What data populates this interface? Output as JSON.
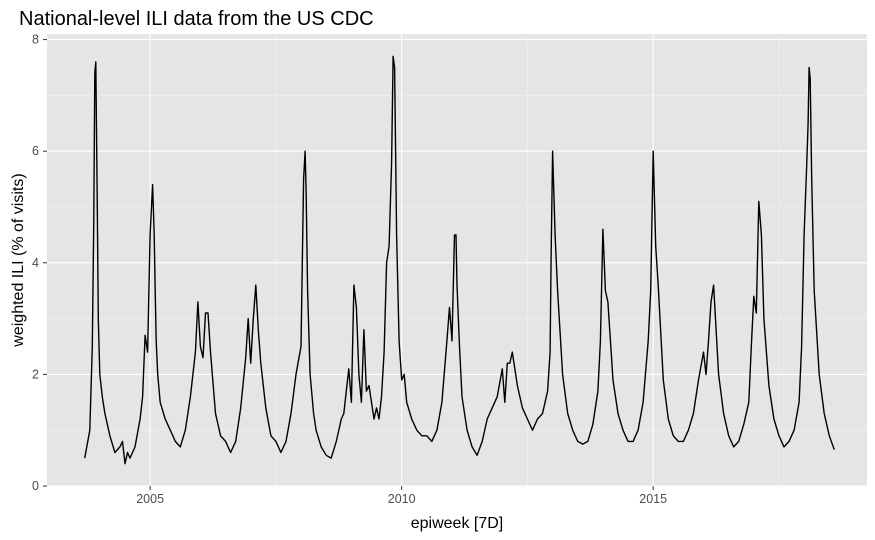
{
  "chart_data": {
    "type": "line",
    "title": "National-level ILI data from the US CDC",
    "xlabel": "epiweek [7D]",
    "ylabel": "weighted ILI (% of visits)",
    "x_ticks": [
      "2005",
      "2010",
      "2015"
    ],
    "y_ticks": [
      "0",
      "2",
      "4",
      "6",
      "8"
    ],
    "xlim": [
      2002.95,
      2019.25
    ],
    "ylim": [
      0,
      8.1
    ],
    "grid": true,
    "background": "#e5e5e5",
    "line_color": "#000000",
    "series": [
      {
        "x": [
          2003.7,
          2003.8,
          2003.85,
          2003.88,
          2003.9,
          2003.92,
          2003.95,
          2003.97,
          2004.0,
          2004.05,
          2004.1,
          2004.2,
          2004.3,
          2004.4,
          2004.45,
          2004.5,
          2004.55,
          2004.6,
          2004.7,
          2004.8,
          2004.85,
          2004.9,
          2004.95,
          2005.0,
          2005.05,
          2005.08,
          2005.1,
          2005.12,
          2005.15,
          2005.2,
          2005.3,
          2005.4,
          2005.5,
          2005.6,
          2005.7,
          2005.8,
          2005.9,
          2005.95,
          2006.0,
          2006.05,
          2006.1,
          2006.15,
          2006.2,
          2006.3,
          2006.4,
          2006.5,
          2006.6,
          2006.7,
          2006.8,
          2006.9,
          2006.95,
          2007.0,
          2007.05,
          2007.1,
          2007.15,
          2007.2,
          2007.3,
          2007.4,
          2007.5,
          2007.6,
          2007.7,
          2007.8,
          2007.9,
          2008.0,
          2008.05,
          2008.08,
          2008.1,
          2008.13,
          2008.18,
          2008.25,
          2008.3,
          2008.4,
          2008.5,
          2008.6,
          2008.7,
          2008.8,
          2008.85,
          2008.9,
          2008.95,
          2009.0,
          2009.05,
          2009.1,
          2009.15,
          2009.2,
          2009.25,
          2009.3,
          2009.35,
          2009.4,
          2009.45,
          2009.5,
          2009.55,
          2009.6,
          2009.65,
          2009.7,
          2009.75,
          2009.8,
          2009.83,
          2009.86,
          2009.9,
          2009.95,
          2010.0,
          2010.05,
          2010.1,
          2010.2,
          2010.3,
          2010.4,
          2010.5,
          2010.6,
          2010.7,
          2010.8,
          2010.9,
          2010.95,
          2011.0,
          2011.05,
          2011.08,
          2011.1,
          2011.15,
          2011.2,
          2011.3,
          2011.4,
          2011.5,
          2011.6,
          2011.7,
          2011.8,
          2011.9,
          2012.0,
          2012.05,
          2012.1,
          2012.15,
          2012.2,
          2012.3,
          2012.4,
          2012.5,
          2012.6,
          2012.7,
          2012.8,
          2012.9,
          2012.95,
          2012.97,
          2013.0,
          2013.05,
          2013.1,
          2013.2,
          2013.3,
          2013.4,
          2013.5,
          2013.6,
          2013.7,
          2013.8,
          2013.9,
          2013.95,
          2014.0,
          2014.05,
          2014.1,
          2014.2,
          2014.3,
          2014.4,
          2014.5,
          2014.6,
          2014.7,
          2014.8,
          2014.9,
          2014.95,
          2015.0,
          2015.05,
          2015.1,
          2015.2,
          2015.3,
          2015.4,
          2015.5,
          2015.6,
          2015.7,
          2015.8,
          2015.9,
          2016.0,
          2016.05,
          2016.1,
          2016.15,
          2016.2,
          2016.25,
          2016.3,
          2016.4,
          2016.5,
          2016.6,
          2016.7,
          2016.8,
          2016.9,
          2016.95,
          2017.0,
          2017.05,
          2017.1,
          2017.15,
          2017.2,
          2017.3,
          2017.4,
          2017.5,
          2017.6,
          2017.7,
          2017.8,
          2017.9,
          2017.95,
          2018.0,
          2018.05,
          2018.08,
          2018.1,
          2018.12,
          2018.15,
          2018.2,
          2018.3,
          2018.4,
          2018.5,
          2018.6
        ],
        "y": [
          0.5,
          1.0,
          2.5,
          4.8,
          7.4,
          7.6,
          5.0,
          3.0,
          2.0,
          1.6,
          1.3,
          0.9,
          0.6,
          0.7,
          0.8,
          0.4,
          0.6,
          0.5,
          0.7,
          1.2,
          1.6,
          2.7,
          2.4,
          4.5,
          5.4,
          4.5,
          3.5,
          2.6,
          2.0,
          1.5,
          1.2,
          1.0,
          0.8,
          0.7,
          1.0,
          1.6,
          2.4,
          3.3,
          2.5,
          2.3,
          3.1,
          3.1,
          2.4,
          1.3,
          0.9,
          0.8,
          0.6,
          0.8,
          1.4,
          2.3,
          3.0,
          2.2,
          3.0,
          3.6,
          2.8,
          2.2,
          1.4,
          0.9,
          0.8,
          0.6,
          0.8,
          1.3,
          2.0,
          2.5,
          5.5,
          6.0,
          5.3,
          3.5,
          2.0,
          1.3,
          1.0,
          0.7,
          0.55,
          0.5,
          0.8,
          1.2,
          1.3,
          1.7,
          2.1,
          1.5,
          3.6,
          3.2,
          2.0,
          1.5,
          2.8,
          1.7,
          1.8,
          1.5,
          1.2,
          1.4,
          1.2,
          1.6,
          2.4,
          4.0,
          4.3,
          5.8,
          7.7,
          7.5,
          4.5,
          2.6,
          1.9,
          2.0,
          1.5,
          1.2,
          1.0,
          0.9,
          0.9,
          0.8,
          1.0,
          1.5,
          2.6,
          3.2,
          2.6,
          4.5,
          4.5,
          3.6,
          2.5,
          1.6,
          1.0,
          0.7,
          0.55,
          0.8,
          1.2,
          1.4,
          1.6,
          2.1,
          1.5,
          2.2,
          2.2,
          2.4,
          1.8,
          1.4,
          1.2,
          1.0,
          1.2,
          1.3,
          1.7,
          2.4,
          4.1,
          6.0,
          4.5,
          3.5,
          2.0,
          1.3,
          1.0,
          0.8,
          0.75,
          0.8,
          1.1,
          1.7,
          2.6,
          4.6,
          3.5,
          3.3,
          1.9,
          1.3,
          1.0,
          0.8,
          0.8,
          1.0,
          1.5,
          2.6,
          3.5,
          6.0,
          4.3,
          3.6,
          1.9,
          1.2,
          0.9,
          0.8,
          0.8,
          1.0,
          1.3,
          1.9,
          2.4,
          2.0,
          2.6,
          3.3,
          3.6,
          2.8,
          2.0,
          1.3,
          0.9,
          0.7,
          0.8,
          1.1,
          1.5,
          2.5,
          3.4,
          3.1,
          5.1,
          4.5,
          3.0,
          1.8,
          1.2,
          0.9,
          0.7,
          0.8,
          1.0,
          1.5,
          2.5,
          4.5,
          5.7,
          6.5,
          7.5,
          7.3,
          5.5,
          3.5,
          2.0,
          1.3,
          0.9,
          0.65
        ]
      }
    ]
  }
}
